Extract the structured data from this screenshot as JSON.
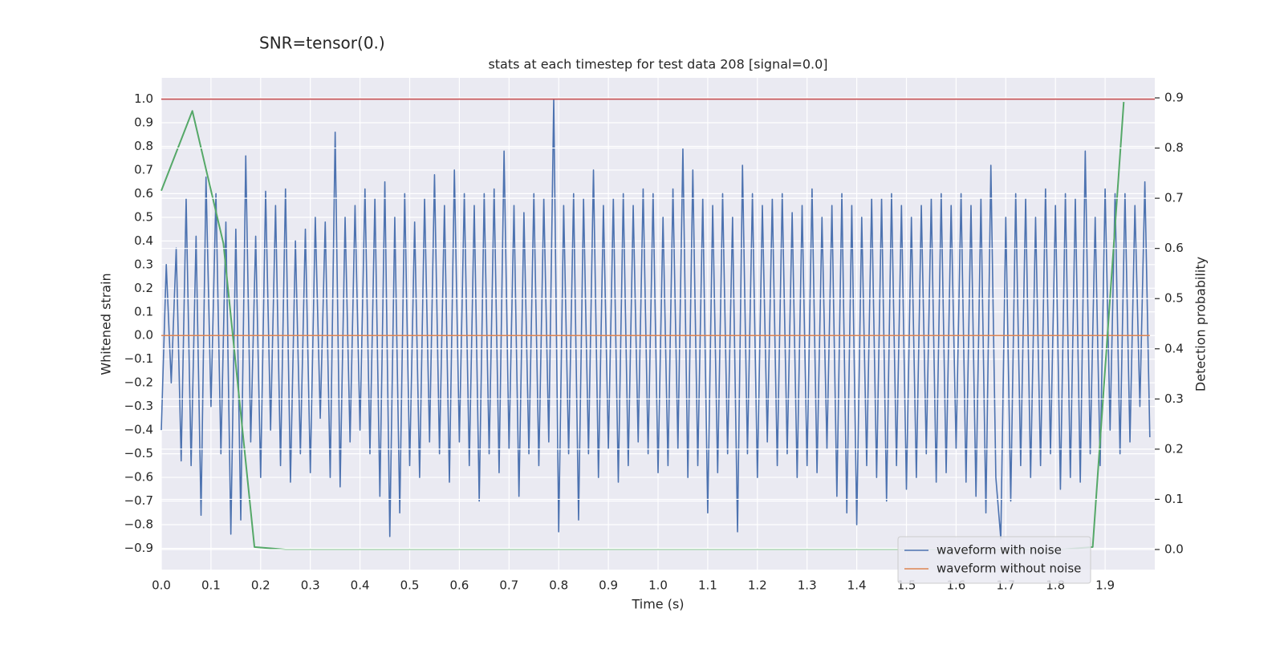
{
  "chart_data": {
    "type": "line",
    "suptitle": "SNR=tensor(0.)",
    "title": "stats at each timestep for test data 208 [signal=0.0]",
    "xlabel": "Time (s)",
    "ylabel": "Whitened strain",
    "y2label": "Detection probability",
    "xlim": [
      0,
      2.0
    ],
    "ylim": [
      -0.99,
      1.09
    ],
    "y2lim": [
      -0.04,
      0.94
    ],
    "xticks": [
      {
        "value": 0,
        "label": "0.0"
      },
      0.1,
      0.2,
      0.3,
      0.4,
      0.5,
      0.6,
      0.7,
      0.8,
      0.9,
      {
        "value": 1,
        "label": "1.0"
      },
      1.1,
      1.2,
      1.3,
      1.4,
      1.5,
      1.6,
      1.7,
      1.8,
      1.9
    ],
    "yticks": [
      {
        "value": -0.9,
        "label": "−0.9"
      },
      {
        "value": -0.8,
        "label": "−0.8"
      },
      {
        "value": -0.7,
        "label": "−0.7"
      },
      {
        "value": -0.6,
        "label": "−0.6"
      },
      {
        "value": -0.5,
        "label": "−0.5"
      },
      {
        "value": -0.4,
        "label": "−0.4"
      },
      {
        "value": -0.3,
        "label": "−0.3"
      },
      {
        "value": -0.2,
        "label": "−0.2"
      },
      {
        "value": -0.1,
        "label": "−0.1"
      },
      {
        "value": 0,
        "label": "0.0"
      },
      0.1,
      0.2,
      0.3,
      0.4,
      0.5,
      0.6,
      0.7,
      0.8,
      0.9,
      {
        "value": 1,
        "label": "1.0"
      }
    ],
    "y2ticks": [
      {
        "value": 0,
        "label": "0.0"
      },
      0.1,
      0.2,
      0.3,
      0.4,
      0.5,
      0.6,
      0.7,
      0.8,
      0.9
    ],
    "grid": true,
    "legend": "lower right",
    "hline": {
      "y": 1.0,
      "color": "#c44e52"
    },
    "series": [
      {
        "name": "waveform with noise",
        "color": "#4c72b0",
        "x": [
          0,
          0.01,
          0.02,
          0.03,
          0.04,
          0.05,
          0.06,
          0.07,
          0.08,
          0.09,
          0.1,
          0.11,
          0.12,
          0.13,
          0.14,
          0.15,
          0.16,
          0.17,
          0.18,
          0.19,
          0.2,
          0.21,
          0.22,
          0.23,
          0.24,
          0.25,
          0.26,
          0.27,
          0.28,
          0.29,
          0.3,
          0.31,
          0.32,
          0.33,
          0.34,
          0.35,
          0.36,
          0.37,
          0.38,
          0.39,
          0.4,
          0.41,
          0.42,
          0.43,
          0.44,
          0.45,
          0.46,
          0.47,
          0.48,
          0.49,
          0.5,
          0.51,
          0.52,
          0.53,
          0.54,
          0.55,
          0.56,
          0.57,
          0.58,
          0.59,
          0.6,
          0.61,
          0.62,
          0.63,
          0.64,
          0.65,
          0.66,
          0.67,
          0.68,
          0.69,
          0.7,
          0.71,
          0.72,
          0.73,
          0.74,
          0.75,
          0.76,
          0.77,
          0.78,
          0.79,
          0.8,
          0.81,
          0.82,
          0.83,
          0.84,
          0.85,
          0.86,
          0.87,
          0.88,
          0.89,
          0.9,
          0.91,
          0.92,
          0.93,
          0.94,
          0.95,
          0.96,
          0.97,
          0.98,
          0.99,
          1,
          1.01,
          1.02,
          1.03,
          1.04,
          1.05,
          1.06,
          1.07,
          1.08,
          1.09,
          1.1,
          1.11,
          1.12,
          1.13,
          1.14,
          1.15,
          1.16,
          1.17,
          1.18,
          1.19,
          1.2,
          1.21,
          1.22,
          1.23,
          1.24,
          1.25,
          1.26,
          1.27,
          1.28,
          1.29,
          1.3,
          1.31,
          1.32,
          1.33,
          1.34,
          1.35,
          1.36,
          1.37,
          1.38,
          1.39,
          1.4,
          1.41,
          1.42,
          1.43,
          1.44,
          1.45,
          1.46,
          1.47,
          1.48,
          1.49,
          1.5,
          1.51,
          1.52,
          1.53,
          1.54,
          1.55,
          1.56,
          1.57,
          1.58,
          1.59,
          1.6,
          1.61,
          1.62,
          1.63,
          1.64,
          1.65,
          1.66,
          1.67,
          1.68,
          1.69,
          1.7,
          1.71,
          1.72,
          1.73,
          1.74,
          1.75,
          1.76,
          1.77,
          1.78,
          1.79,
          1.8,
          1.81,
          1.82,
          1.83,
          1.84,
          1.85,
          1.86,
          1.87,
          1.88,
          1.89,
          1.9,
          1.91,
          1.92,
          1.93,
          1.94,
          1.95,
          1.96,
          1.97,
          1.98,
          1.99
        ],
        "values": [
          -0.4,
          0.3,
          -0.2,
          0.37,
          -0.53,
          0.58,
          -0.55,
          0.42,
          -0.76,
          0.67,
          -0.3,
          0.6,
          -0.5,
          0.48,
          -0.84,
          0.45,
          -0.78,
          0.76,
          -0.45,
          0.42,
          -0.6,
          0.61,
          -0.4,
          0.55,
          -0.55,
          0.62,
          -0.62,
          0.4,
          -0.5,
          0.45,
          -0.58,
          0.5,
          -0.35,
          0.48,
          -0.6,
          0.86,
          -0.64,
          0.5,
          -0.45,
          0.55,
          -0.4,
          0.62,
          -0.5,
          0.58,
          -0.68,
          0.65,
          -0.85,
          0.5,
          -0.75,
          0.6,
          -0.55,
          0.48,
          -0.6,
          0.58,
          -0.45,
          0.68,
          -0.5,
          0.55,
          -0.62,
          0.7,
          -0.45,
          0.6,
          -0.55,
          0.55,
          -0.7,
          0.6,
          -0.5,
          0.62,
          -0.58,
          0.78,
          -0.48,
          0.55,
          -0.68,
          0.52,
          -0.5,
          0.6,
          -0.55,
          0.58,
          -0.45,
          1.0,
          -0.83,
          0.55,
          -0.5,
          0.6,
          -0.78,
          0.58,
          -0.5,
          0.7,
          -0.6,
          0.55,
          -0.48,
          0.58,
          -0.62,
          0.6,
          -0.55,
          0.55,
          -0.45,
          0.62,
          -0.5,
          0.6,
          -0.58,
          0.5,
          -0.55,
          0.62,
          -0.48,
          0.79,
          -0.6,
          0.7,
          -0.55,
          0.58,
          -0.75,
          0.55,
          -0.58,
          0.6,
          -0.5,
          0.5,
          -0.83,
          0.72,
          -0.5,
          0.6,
          -0.6,
          0.55,
          -0.45,
          0.58,
          -0.55,
          0.6,
          -0.5,
          0.52,
          -0.6,
          0.55,
          -0.55,
          0.62,
          -0.58,
          0.5,
          -0.48,
          0.55,
          -0.68,
          0.6,
          -0.75,
          0.55,
          -0.8,
          0.5,
          -0.55,
          0.58,
          -0.6,
          0.58,
          -0.7,
          0.6,
          -0.55,
          0.55,
          -0.65,
          0.5,
          -0.6,
          0.55,
          -0.5,
          0.58,
          -0.62,
          0.6,
          -0.58,
          0.55,
          -0.48,
          0.6,
          -0.62,
          0.55,
          -0.68,
          0.58,
          -0.75,
          0.72,
          -0.6,
          -0.86,
          0.5,
          -0.7,
          0.6,
          -0.55,
          0.58,
          -0.6,
          0.5,
          -0.55,
          0.62,
          -0.5,
          0.55,
          -0.65,
          0.6,
          -0.6,
          0.58,
          -0.62,
          0.78,
          -0.5,
          0.5,
          -0.55,
          0.62,
          -0.4,
          0.6,
          -0.5,
          0.6,
          -0.45,
          0.55,
          -0.3,
          0.65,
          -0.43
        ]
      },
      {
        "name": "waveform without noise",
        "color": "#dd8452",
        "x": [
          0,
          1.99
        ],
        "values": [
          0,
          0
        ]
      },
      {
        "color": "#55a868",
        "axis": "y2",
        "x": [
          0,
          0.0625,
          0.125,
          0.1875,
          0.25,
          0.3125,
          0.375,
          0.4375,
          0.5,
          0.5625,
          0.625,
          0.6875,
          0.75,
          0.8125,
          0.875,
          0.9375,
          1,
          1.0625,
          1.125,
          1.1875,
          1.25,
          1.3125,
          1.375,
          1.4375,
          1.5,
          1.5625,
          1.625,
          1.6875,
          1.75,
          1.8125,
          1.875,
          1.9375
        ],
        "values": [
          0.715,
          0.874,
          0.61,
          0.005,
          0,
          0,
          0,
          0,
          0,
          0,
          0,
          0,
          0,
          0,
          0,
          0,
          0,
          0,
          0,
          0,
          0,
          0,
          0,
          0,
          0,
          0,
          0,
          0,
          0,
          0,
          0.005,
          0.892
        ]
      }
    ]
  }
}
